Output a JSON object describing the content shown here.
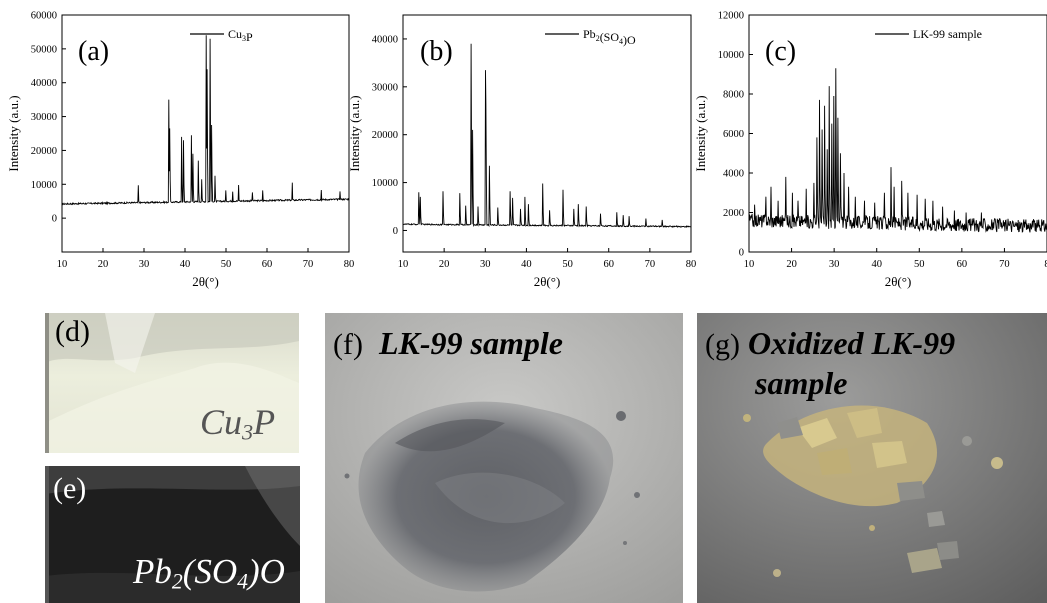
{
  "chart_data": [
    {
      "id": "a",
      "type": "line",
      "panel_label": "(a)",
      "legend": "Cu",
      "legend_sub": "3",
      "legend_after": "P",
      "legend_position": "top-right",
      "xlabel": "2θ(°)",
      "ylabel": "Intensity (a.u.)",
      "xlim": [
        10,
        80
      ],
      "ylim": [
        -10000,
        60000
      ],
      "xticks": [
        "10",
        "20",
        "30",
        "40",
        "50",
        "60",
        "70",
        "80"
      ],
      "yticks": [
        "0",
        "10000",
        "20000",
        "30000",
        "40000",
        "50000",
        "60000"
      ],
      "baseline_start": 4200,
      "baseline_end": 5600,
      "noise": 450,
      "peaks": [
        {
          "x": 28.6,
          "y": 9700
        },
        {
          "x": 36.0,
          "y": 35000
        },
        {
          "x": 36.3,
          "y": 26500
        },
        {
          "x": 39.1,
          "y": 24000
        },
        {
          "x": 39.6,
          "y": 23000
        },
        {
          "x": 41.5,
          "y": 24500
        },
        {
          "x": 41.9,
          "y": 19000
        },
        {
          "x": 43.2,
          "y": 17000
        },
        {
          "x": 44.1,
          "y": 11500
        },
        {
          "x": 45.1,
          "y": 54000
        },
        {
          "x": 45.4,
          "y": 44000
        },
        {
          "x": 46.1,
          "y": 53000
        },
        {
          "x": 46.5,
          "y": 27500
        },
        {
          "x": 47.3,
          "y": 12500
        },
        {
          "x": 50.0,
          "y": 8200
        },
        {
          "x": 51.6,
          "y": 7800
        },
        {
          "x": 53.1,
          "y": 9800
        },
        {
          "x": 56.4,
          "y": 7600
        },
        {
          "x": 59.0,
          "y": 8200
        },
        {
          "x": 66.1,
          "y": 10500
        },
        {
          "x": 73.2,
          "y": 8300
        },
        {
          "x": 77.8,
          "y": 7900
        }
      ]
    },
    {
      "id": "b",
      "type": "line",
      "panel_label": "(b)",
      "legend": "Pb",
      "legend_sub": "2",
      "legend_after": "(SO",
      "legend_sub2": "4",
      "legend_after2": ")O",
      "legend_position": "top-right",
      "xlabel": "2θ(°)",
      "ylabel": "Intensity (a.u.)",
      "xlim": [
        10,
        80
      ],
      "ylim": [
        -4500,
        45000
      ],
      "xticks": [
        "10",
        "20",
        "30",
        "40",
        "50",
        "60",
        "70",
        "80"
      ],
      "yticks": [
        "0",
        "10000",
        "20000",
        "30000",
        "40000"
      ],
      "baseline_start": 1300,
      "baseline_end": 800,
      "noise": 250,
      "peaks": [
        {
          "x": 13.8,
          "y": 8000
        },
        {
          "x": 14.2,
          "y": 7000
        },
        {
          "x": 19.7,
          "y": 8200
        },
        {
          "x": 23.8,
          "y": 7800
        },
        {
          "x": 25.3,
          "y": 5200
        },
        {
          "x": 26.6,
          "y": 39000
        },
        {
          "x": 26.9,
          "y": 21000
        },
        {
          "x": 28.2,
          "y": 5000
        },
        {
          "x": 30.0,
          "y": 33500
        },
        {
          "x": 30.2,
          "y": 26500
        },
        {
          "x": 31.0,
          "y": 13500
        },
        {
          "x": 33.0,
          "y": 4800
        },
        {
          "x": 36.0,
          "y": 8200
        },
        {
          "x": 36.6,
          "y": 6800
        },
        {
          "x": 38.5,
          "y": 4500
        },
        {
          "x": 39.6,
          "y": 7000
        },
        {
          "x": 40.5,
          "y": 5500
        },
        {
          "x": 43.9,
          "y": 9800
        },
        {
          "x": 45.6,
          "y": 4200
        },
        {
          "x": 48.9,
          "y": 8500
        },
        {
          "x": 51.5,
          "y": 4500
        },
        {
          "x": 52.6,
          "y": 5500
        },
        {
          "x": 54.5,
          "y": 5000
        },
        {
          "x": 58.0,
          "y": 3500
        },
        {
          "x": 62.0,
          "y": 3800
        },
        {
          "x": 63.5,
          "y": 3200
        },
        {
          "x": 65.0,
          "y": 3000
        },
        {
          "x": 69.0,
          "y": 2500
        },
        {
          "x": 73.0,
          "y": 2200
        }
      ]
    },
    {
      "id": "c",
      "type": "line",
      "panel_label": "(c)",
      "legend": "LK-99 sample",
      "legend_position": "top-right",
      "xlabel": "2θ(°)",
      "ylabel": "Intensity (a.u.)",
      "xlim": [
        10,
        80
      ],
      "ylim": [
        0,
        12000
      ],
      "x_axis_visible_max": 80,
      "xticks": [
        "10",
        "20",
        "30",
        "40",
        "50",
        "60",
        "70",
        "8"
      ],
      "yticks": [
        "0",
        "2000",
        "4000",
        "6000",
        "8000",
        "10000",
        "12000"
      ],
      "baseline_start": 1600,
      "baseline_end": 1300,
      "noise": 700,
      "peaks": [
        {
          "x": 11.3,
          "y": 2400
        },
        {
          "x": 13.9,
          "y": 2800
        },
        {
          "x": 15.1,
          "y": 3300
        },
        {
          "x": 16.8,
          "y": 2600
        },
        {
          "x": 18.6,
          "y": 3800
        },
        {
          "x": 20.2,
          "y": 3000
        },
        {
          "x": 21.5,
          "y": 2600
        },
        {
          "x": 23.5,
          "y": 3200
        },
        {
          "x": 25.3,
          "y": 3500
        },
        {
          "x": 26.0,
          "y": 5800
        },
        {
          "x": 26.6,
          "y": 7700
        },
        {
          "x": 27.2,
          "y": 6200
        },
        {
          "x": 27.8,
          "y": 7400
        },
        {
          "x": 28.4,
          "y": 5200
        },
        {
          "x": 28.9,
          "y": 8400
        },
        {
          "x": 29.4,
          "y": 6500
        },
        {
          "x": 29.9,
          "y": 7900
        },
        {
          "x": 30.4,
          "y": 9300
        },
        {
          "x": 30.9,
          "y": 6800
        },
        {
          "x": 31.5,
          "y": 5000
        },
        {
          "x": 32.3,
          "y": 4000
        },
        {
          "x": 33.4,
          "y": 3300
        },
        {
          "x": 35.0,
          "y": 2800
        },
        {
          "x": 37.1,
          "y": 2600
        },
        {
          "x": 39.5,
          "y": 2500
        },
        {
          "x": 41.8,
          "y": 3000
        },
        {
          "x": 43.3,
          "y": 4300
        },
        {
          "x": 44.1,
          "y": 3300
        },
        {
          "x": 45.9,
          "y": 3600
        },
        {
          "x": 47.3,
          "y": 3000
        },
        {
          "x": 49.5,
          "y": 2900
        },
        {
          "x": 51.4,
          "y": 2700
        },
        {
          "x": 53.2,
          "y": 2600
        },
        {
          "x": 55.5,
          "y": 2300
        },
        {
          "x": 58.2,
          "y": 2100
        },
        {
          "x": 61.0,
          "y": 2000
        },
        {
          "x": 64.6,
          "y": 2000
        }
      ]
    }
  ],
  "photos": {
    "d": {
      "label": "(d)",
      "caption": "Cu",
      "caption_sub": "3",
      "caption_after": "P",
      "color": "#e9ead9"
    },
    "e": {
      "label": "(e)",
      "caption": "Pb",
      "caption_sub": "2",
      "caption_after": "(SO",
      "caption_sub2": "4",
      "caption_after2": ")O",
      "color": "#1c1c1c"
    },
    "f": {
      "label": "(f)",
      "caption": "LK-99 sample",
      "color": "#b9b9b7"
    },
    "g": {
      "label": "(g)",
      "caption_line1": "Oxidized LK-99",
      "caption_line2": "sample",
      "color": "#8a8a8a"
    }
  }
}
